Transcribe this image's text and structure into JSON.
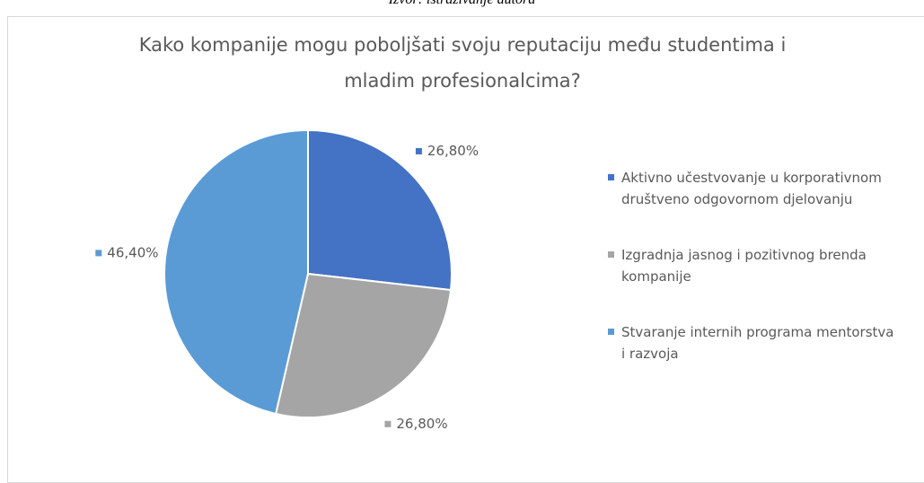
{
  "source": "Izvor: istraživanje autora",
  "chart_data": {
    "type": "pie",
    "title": "Kako kompanije mogu poboljšati svoju reputaciju među studentima i mladim profesionalcima?",
    "categories": [
      "Aktivno učestvovanje u korporativnom društveno odgovornom djelovanju",
      "Izgradnja jasnog i pozitivnog brenda kompanije",
      "Stvaranje internih programa mentorstva i razvoja"
    ],
    "values": [
      26.8,
      26.8,
      46.4
    ],
    "value_labels": [
      "26,80%",
      "26,80%",
      "46,40%"
    ],
    "colors": [
      "#4472c4",
      "#a5a5a5",
      "#5b9bd5"
    ],
    "legend": "right"
  }
}
